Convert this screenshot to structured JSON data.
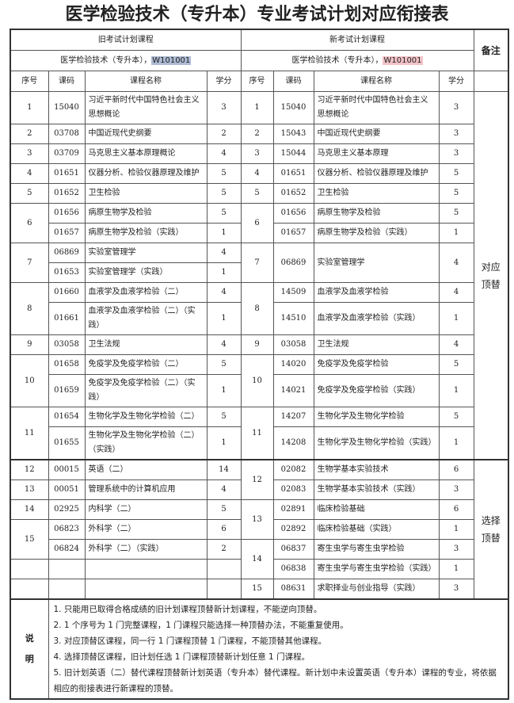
{
  "title": "医学检验技术（专升本）专业考试计划对应衔接表",
  "header": {
    "old_plan": "旧考试计划课程",
    "new_plan": "新考试计划课程",
    "remark": "备注",
    "old_major": "医学检验技术（专升本），",
    "old_code": "W101001",
    "new_major": "医学检验技术（专升本），",
    "new_code": "W101001",
    "columns": [
      "序号",
      "课码",
      "课程名称",
      "学分",
      "序号",
      "课码",
      "课程名称",
      "学分"
    ]
  },
  "highlight_colors": {
    "old_code": "#aebbd4",
    "new_code": "#f2c3c8"
  },
  "sections": [
    {
      "remark": "对应顶替",
      "pairs": [
        {
          "old": {
            "seq": "1",
            "courses": [
              {
                "code": "15040",
                "name": "习近平新时代中国特色社会主义思想概论",
                "credit": "3"
              }
            ]
          },
          "new": {
            "seq": "1",
            "courses": [
              {
                "code": "15040",
                "name": "习近平新时代中国特色社会主义思想概论",
                "credit": "3"
              }
            ]
          }
        },
        {
          "old": {
            "seq": "2",
            "courses": [
              {
                "code": "03708",
                "name": "中国近现代史纲要",
                "credit": "2"
              }
            ]
          },
          "new": {
            "seq": "2",
            "courses": [
              {
                "code": "15043",
                "name": "中国近现代史纲要",
                "credit": "3"
              }
            ]
          }
        },
        {
          "old": {
            "seq": "3",
            "courses": [
              {
                "code": "03709",
                "name": "马克思主义基本原理概论",
                "credit": "4"
              }
            ]
          },
          "new": {
            "seq": "3",
            "courses": [
              {
                "code": "15044",
                "name": "马克思主义基本原理",
                "credit": "3"
              }
            ]
          }
        },
        {
          "old": {
            "seq": "4",
            "courses": [
              {
                "code": "01651",
                "name": "仪器分析、检验仪器原理及维护",
                "credit": "5"
              }
            ]
          },
          "new": {
            "seq": "4",
            "courses": [
              {
                "code": "01651",
                "name": "仪器分析、检验仪器原理及维护",
                "credit": "5"
              }
            ]
          }
        },
        {
          "old": {
            "seq": "5",
            "courses": [
              {
                "code": "01652",
                "name": "卫生检验",
                "credit": "5"
              }
            ]
          },
          "new": {
            "seq": "5",
            "courses": [
              {
                "code": "01652",
                "name": "卫生检验",
                "credit": "5"
              }
            ]
          }
        },
        {
          "old": {
            "seq": "6",
            "courses": [
              {
                "code": "01656",
                "name": "病原生物学及检验",
                "credit": "5"
              },
              {
                "code": "01657",
                "name": "病原生物学及检验（实践）",
                "credit": "1"
              }
            ]
          },
          "new": {
            "seq": "6",
            "courses": [
              {
                "code": "01656",
                "name": "病原生物学及检验",
                "credit": "5"
              },
              {
                "code": "01657",
                "name": "病原生物学及检验（实践）",
                "credit": "1"
              }
            ]
          }
        },
        {
          "old": {
            "seq": "7",
            "courses": [
              {
                "code": "06869",
                "name": "实验室管理学",
                "credit": "4"
              },
              {
                "code": "01653",
                "name": "实验室管理学（实践）",
                "credit": "1"
              }
            ]
          },
          "new": {
            "seq": "7",
            "courses": [
              {
                "code": "06869",
                "name": "实验室管理学",
                "credit": "4"
              }
            ]
          }
        },
        {
          "old": {
            "seq": "8",
            "courses": [
              {
                "code": "01660",
                "name": "血液学及血液学检验（二）",
                "credit": "4"
              },
              {
                "code": "01661",
                "name": "血液学及血液学检验（二）（实践）",
                "credit": "1"
              }
            ]
          },
          "new": {
            "seq": "8",
            "courses": [
              {
                "code": "14509",
                "name": "血液学及血液学检验",
                "credit": "4"
              },
              {
                "code": "14510",
                "name": "血液学及血液学检验（实践）",
                "credit": "1"
              }
            ]
          }
        },
        {
          "old": {
            "seq": "9",
            "courses": [
              {
                "code": "03058",
                "name": "卫生法规",
                "credit": "4"
              }
            ]
          },
          "new": {
            "seq": "9",
            "courses": [
              {
                "code": "03058",
                "name": "卫生法规",
                "credit": "4"
              }
            ]
          }
        },
        {
          "old": {
            "seq": "10",
            "courses": [
              {
                "code": "01658",
                "name": "免疫学及免疫学检验（二）",
                "credit": "5"
              },
              {
                "code": "01659",
                "name": "免疫学及免疫学检验（二）（实践）",
                "credit": "1"
              }
            ]
          },
          "new": {
            "seq": "10",
            "courses": [
              {
                "code": "14020",
                "name": "免疫学及免疫学检验",
                "credit": "5"
              },
              {
                "code": "14021",
                "name": "免疫学及免疫学检验（实践）",
                "credit": "1"
              }
            ]
          }
        },
        {
          "old": {
            "seq": "11",
            "courses": [
              {
                "code": "01654",
                "name": "生物化学及生物化学检验（二）",
                "credit": "5"
              },
              {
                "code": "01655",
                "name": "生物化学及生物化学检验（二）（实践）",
                "credit": "1"
              }
            ]
          },
          "new": {
            "seq": "11",
            "courses": [
              {
                "code": "14207",
                "name": "生物化学及生物化学检验",
                "credit": "5"
              },
              {
                "code": "14208",
                "name": "生物化学及生物化学检验（实践）",
                "credit": "1"
              }
            ]
          }
        }
      ]
    },
    {
      "remark": "选择顶替",
      "old": [
        {
          "seq": "12",
          "courses": [
            {
              "code": "00015",
              "name": "英语（二）",
              "credit": "14"
            }
          ]
        },
        {
          "seq": "13",
          "courses": [
            {
              "code": "00051",
              "name": "管理系统中的计算机应用",
              "credit": "4"
            }
          ]
        },
        {
          "seq": "14",
          "courses": [
            {
              "code": "02925",
              "name": "内科学（二）",
              "credit": "5"
            }
          ]
        },
        {
          "seq": "15",
          "courses": [
            {
              "code": "06823",
              "name": "外科学（二）",
              "credit": "6"
            },
            {
              "code": "06824",
              "name": "外科学（二）（实践）",
              "credit": "2"
            }
          ]
        }
      ],
      "new": [
        {
          "seq": "12",
          "courses": [
            {
              "code": "02082",
              "name": "生物学基本实验技术",
              "credit": "6"
            },
            {
              "code": "02083",
              "name": "生物学基本实验技术（实践）",
              "credit": "3"
            }
          ]
        },
        {
          "seq": "13",
          "courses": [
            {
              "code": "02891",
              "name": "临床检验基础",
              "credit": "6"
            },
            {
              "code": "02892",
              "name": "临床检验基础（实践）",
              "credit": "1"
            }
          ]
        },
        {
          "seq": "14",
          "courses": [
            {
              "code": "06837",
              "name": "寄生虫学与寄生虫学检验",
              "credit": "3"
            },
            {
              "code": "06838",
              "name": "寄生虫学与寄生虫学检验（实践）",
              "credit": "1"
            }
          ]
        },
        {
          "seq": "15",
          "courses": [
            {
              "code": "08631",
              "name": "求职择业与创业指导（实践）",
              "credit": "3"
            }
          ]
        }
      ]
    }
  ],
  "notes": {
    "label": "说明",
    "items": [
      "1. 只能用已取得合格成绩的旧计划课程顶替新计划课程，不能逆向顶替。",
      "2. 1 个序号为 1 门完整课程，1 门课程只能选择一种顶替办法，不能重复使用。",
      "3. 对应顶替区课程，同一行 1 门课程顶替 1 门课程，不能顶替其他课程。",
      "4. 选择顶替区课程，旧计划任选 1 门课程顶替新计划任意 1 门课程。",
      "5. 旧计划英语（二）替代课程顶替新计划英语（专升本）替代课程。新计划中未设置英语（专升本）课程的专业，将依据相应的衔接表进行新课程的顶替。"
    ]
  }
}
